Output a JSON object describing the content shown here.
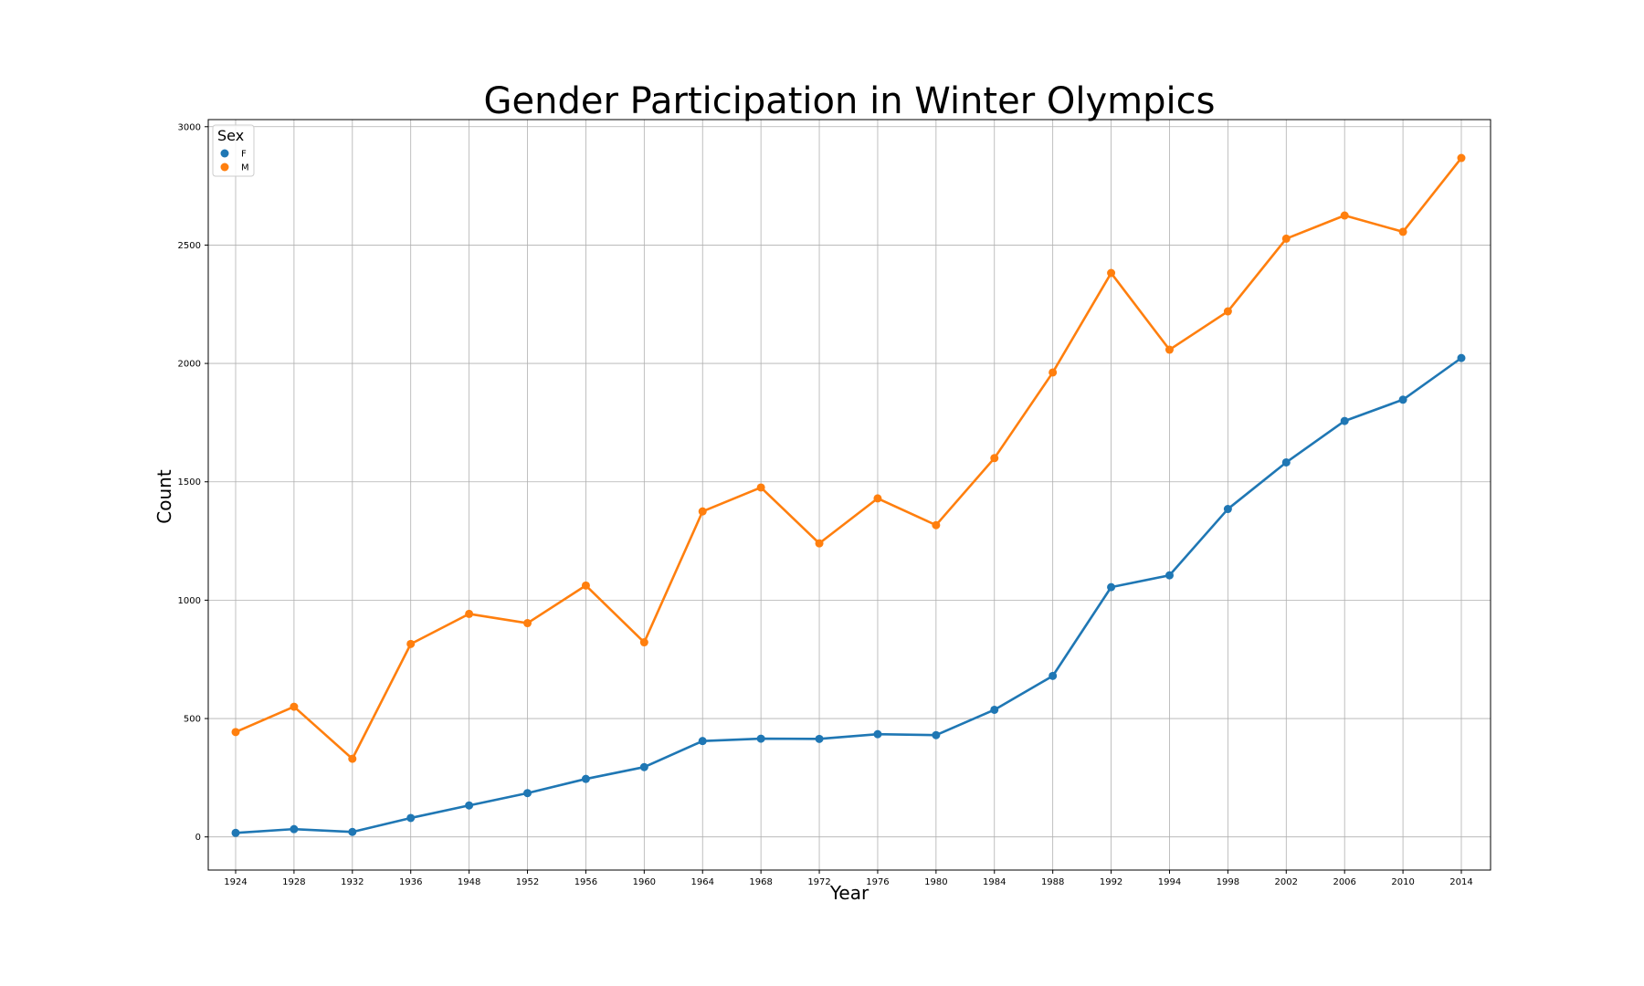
{
  "chart_data": {
    "type": "line",
    "title": "Gender Participation in Winter Olympics",
    "xlabel": "Year",
    "ylabel": "Count",
    "categories": [
      "1924",
      "1928",
      "1932",
      "1936",
      "1948",
      "1952",
      "1956",
      "1960",
      "1964",
      "1968",
      "1972",
      "1976",
      "1980",
      "1984",
      "1988",
      "1992",
      "1994",
      "1998",
      "2002",
      "2006",
      "2010",
      "2014"
    ],
    "ylim": [
      -140,
      3030
    ],
    "yticks": [
      0,
      500,
      1000,
      1500,
      2000,
      2500,
      3000
    ],
    "grid": true,
    "legend": {
      "title": "Sex",
      "placement": "top-left"
    },
    "series": [
      {
        "name": "F",
        "color": "#1f77b4",
        "values": [
          17,
          33,
          21,
          80,
          133,
          185,
          245,
          295,
          405,
          415,
          414,
          434,
          430,
          537,
          680,
          1055,
          1105,
          1385,
          1582,
          1757,
          1847,
          2023
        ]
      },
      {
        "name": "M",
        "color": "#ff7f0e",
        "values": [
          443,
          550,
          330,
          815,
          942,
          903,
          1062,
          822,
          1375,
          1476,
          1240,
          1430,
          1317,
          1600,
          1962,
          2382,
          2058,
          2220,
          2527,
          2625,
          2556,
          2868
        ]
      }
    ]
  }
}
